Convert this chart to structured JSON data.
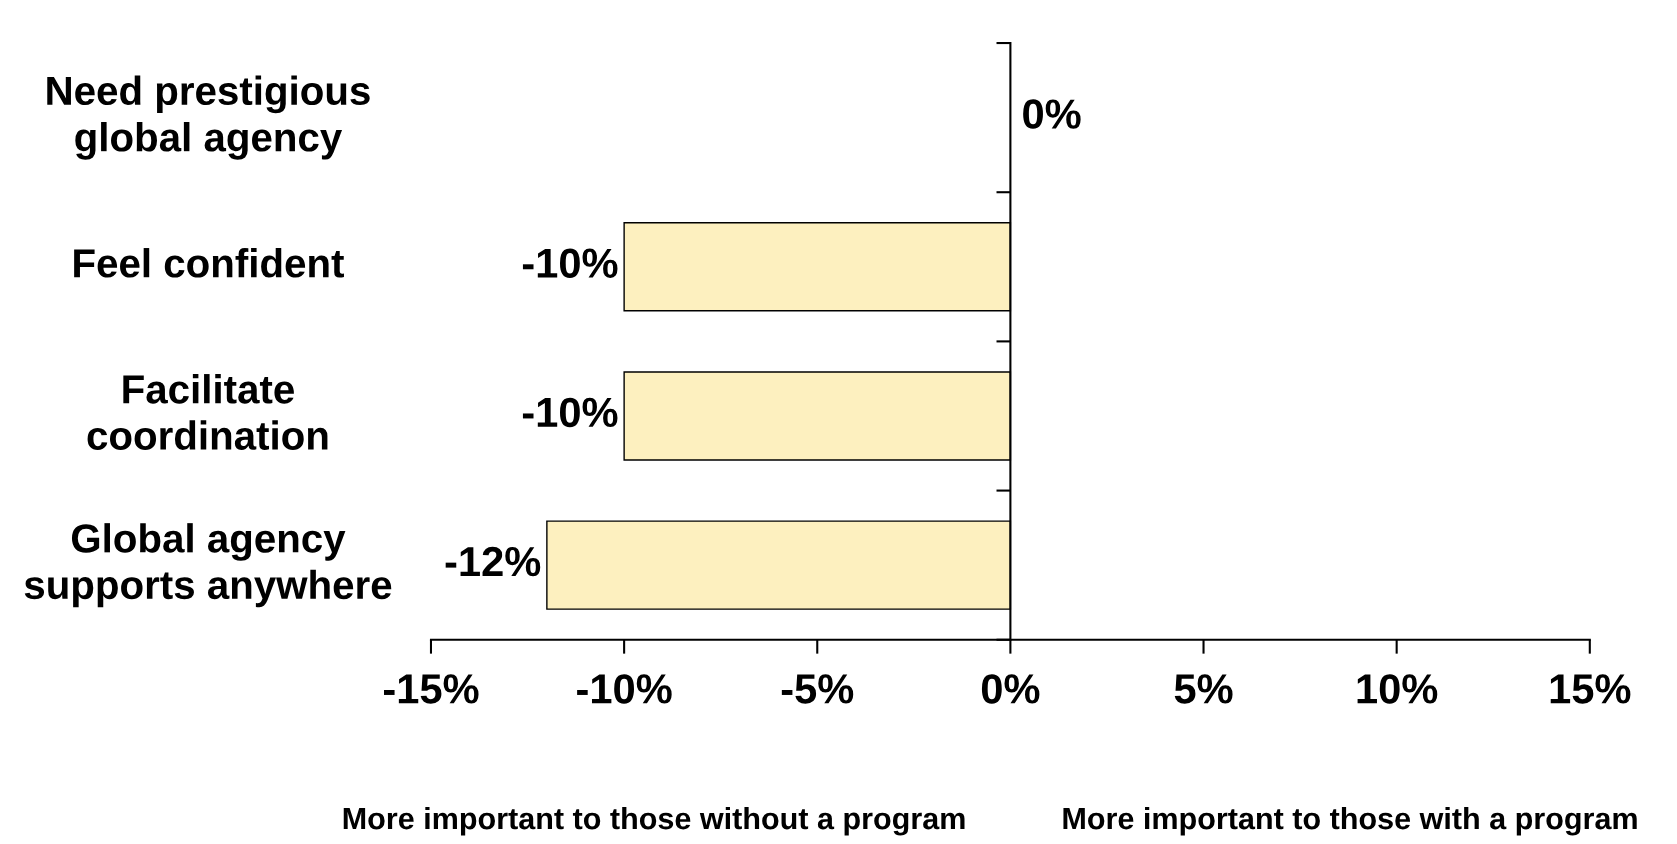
{
  "chart_data": {
    "type": "bar",
    "orientation": "horizontal",
    "categories": [
      "Need prestigious\nglobal agency",
      "Feel confident",
      "Facilitate\ncoordination",
      "Global agency\nsupports anywhere"
    ],
    "values": [
      0,
      -10,
      -10,
      -12
    ],
    "value_labels": [
      "0%",
      "-10%",
      "-10%",
      "-12%"
    ],
    "color": "#fdf0bf",
    "xlim": [
      -15,
      15
    ],
    "xticks": [
      {
        "value": -15,
        "label": "-15%"
      },
      {
        "value": -10,
        "label": "-10%"
      },
      {
        "value": -5,
        "label": "-5%"
      },
      {
        "value": 0,
        "label": "0%"
      },
      {
        "value": 5,
        "label": "5%"
      },
      {
        "value": 10,
        "label": "10%"
      },
      {
        "value": 15,
        "label": "15%"
      }
    ],
    "annotations": [
      "More important to those without a program",
      "More important to those with a program"
    ]
  }
}
